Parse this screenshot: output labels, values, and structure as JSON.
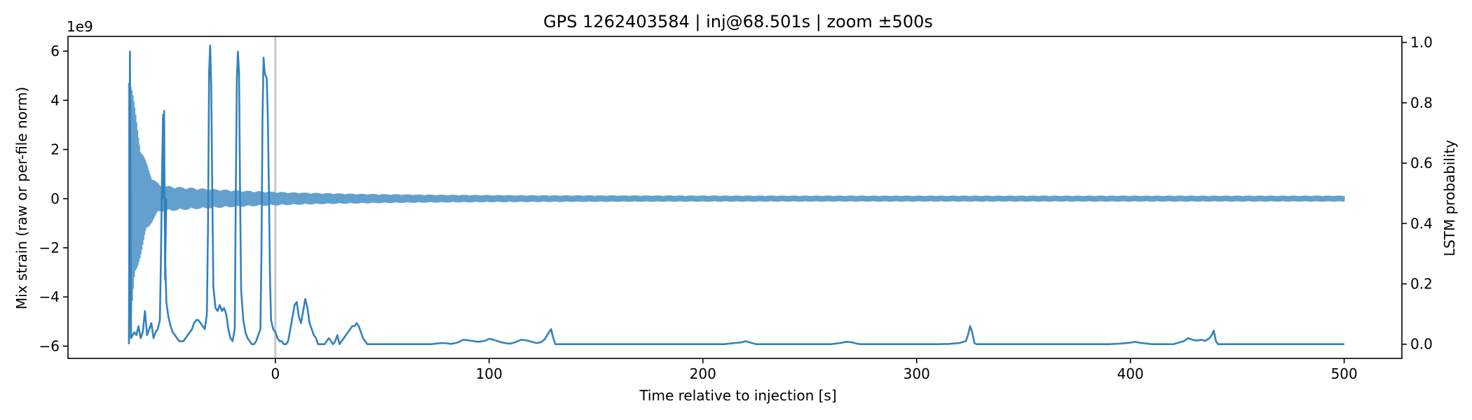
{
  "chart_data": {
    "type": "line",
    "title": "GPS 1262403584 | inj@68.501s | zoom ±500s",
    "xlabel": "Time relative to injection [s]",
    "ylabel_left": "Mix strain (raw or per-file norm)",
    "ylabel_right": "LSTM probability",
    "offset_text": "1e9",
    "xlim": [
      -97,
      527
    ],
    "ylim_left": [
      -6500000000.0,
      6600000000.0
    ],
    "ylim_right": [
      -0.047,
      1.02
    ],
    "x_ticks": [
      0,
      100,
      200,
      300,
      400,
      500
    ],
    "y_left_ticks": [
      -6,
      -4,
      -2,
      0,
      2,
      4,
      6
    ],
    "y_right_ticks": [
      0.0,
      0.2,
      0.4,
      0.6,
      0.8,
      1.0
    ],
    "injection_marker_x": 0,
    "grid": false,
    "strain_series": {
      "color": "#5b9bcb",
      "x_start": -68.5,
      "x_end": 500,
      "initial_amplitude": 5900000000.0,
      "bursts": [
        {
          "x": -52,
          "value": 3600000000.0
        },
        {
          "x": -52,
          "value": -3300000000.0
        }
      ],
      "final_amplitude": 120000000.0
    },
    "probability_series": {
      "color": "#3282bd",
      "points": [
        [
          -68.5,
          0.0
        ],
        [
          -68.0,
          0.97
        ],
        [
          -67.5,
          0.02
        ],
        [
          -66,
          0.04
        ],
        [
          -65,
          0.03
        ],
        [
          -64,
          0.06
        ],
        [
          -63,
          0.02
        ],
        [
          -62,
          0.04
        ],
        [
          -61,
          0.11
        ],
        [
          -60,
          0.03
        ],
        [
          -59,
          0.05
        ],
        [
          -58,
          0.07
        ],
        [
          -57,
          0.02
        ],
        [
          -56,
          0.04
        ],
        [
          -55,
          0.05
        ],
        [
          -54,
          0.08
        ],
        [
          -53.5,
          0.3
        ],
        [
          -53,
          0.58
        ],
        [
          -52.5,
          0.76
        ],
        [
          -52,
          0.59
        ],
        [
          -51.5,
          0.27
        ],
        [
          -51,
          0.14
        ],
        [
          -50,
          0.09
        ],
        [
          -49,
          0.06
        ],
        [
          -48,
          0.04
        ],
        [
          -47,
          0.03
        ],
        [
          -46,
          0.02
        ],
        [
          -45,
          0.01
        ],
        [
          -44,
          0.01
        ],
        [
          -43,
          0.01
        ],
        [
          -42,
          0.02
        ],
        [
          -41,
          0.03
        ],
        [
          -40,
          0.04
        ],
        [
          -39,
          0.05
        ],
        [
          -38,
          0.07
        ],
        [
          -37,
          0.08
        ],
        [
          -36,
          0.08
        ],
        [
          -35,
          0.07
        ],
        [
          -34,
          0.06
        ],
        [
          -33,
          0.05
        ],
        [
          -32,
          0.1
        ],
        [
          -31.5,
          0.4
        ],
        [
          -31,
          0.9
        ],
        [
          -30.5,
          0.99
        ],
        [
          -30,
          0.86
        ],
        [
          -29.5,
          0.5
        ],
        [
          -29,
          0.19
        ],
        [
          -28,
          0.12
        ],
        [
          -27,
          0.11
        ],
        [
          -26,
          0.13
        ],
        [
          -25,
          0.11
        ],
        [
          -24,
          0.12
        ],
        [
          -23,
          0.1
        ],
        [
          -22,
          0.05
        ],
        [
          -21,
          0.02
        ],
        [
          -20,
          0.01
        ],
        [
          -19,
          0.05
        ],
        [
          -18.5,
          0.5
        ],
        [
          -18,
          0.88
        ],
        [
          -17.5,
          0.97
        ],
        [
          -17,
          0.9
        ],
        [
          -16.5,
          0.5
        ],
        [
          -16,
          0.18
        ],
        [
          -15,
          0.08
        ],
        [
          -14,
          0.04
        ],
        [
          -13,
          0.02
        ],
        [
          -12,
          0.01
        ],
        [
          -11,
          0.0
        ],
        [
          -10,
          0.0
        ],
        [
          -9,
          0.01
        ],
        [
          -8,
          0.03
        ],
        [
          -7,
          0.05
        ],
        [
          -6.5,
          0.3
        ],
        [
          -6,
          0.75
        ],
        [
          -5.5,
          0.95
        ],
        [
          -5,
          0.9
        ],
        [
          -4.5,
          0.89
        ],
        [
          -4,
          0.88
        ],
        [
          -3.5,
          0.75
        ],
        [
          -3,
          0.5
        ],
        [
          -2.5,
          0.22
        ],
        [
          -2,
          0.08
        ],
        [
          -1,
          0.05
        ],
        [
          0,
          0.04
        ],
        [
          1,
          0.02
        ],
        [
          2,
          0.01
        ],
        [
          3,
          0.01
        ],
        [
          4,
          0.0
        ],
        [
          5,
          0.0
        ],
        [
          6,
          0.01
        ],
        [
          7,
          0.05
        ],
        [
          8,
          0.09
        ],
        [
          9,
          0.13
        ],
        [
          10,
          0.14
        ],
        [
          11,
          0.09
        ],
        [
          12,
          0.07
        ],
        [
          13,
          0.11
        ],
        [
          14,
          0.15
        ],
        [
          15,
          0.12
        ],
        [
          16,
          0.07
        ],
        [
          17,
          0.05
        ],
        [
          18,
          0.03
        ],
        [
          19,
          0.02
        ],
        [
          20,
          0.0
        ],
        [
          21,
          0.0
        ],
        [
          22,
          0.0
        ],
        [
          23,
          0.0
        ],
        [
          24,
          0.01
        ],
        [
          25,
          0.02
        ],
        [
          26,
          0.01
        ],
        [
          27,
          0.0
        ],
        [
          28,
          0.01
        ],
        [
          29,
          0.03
        ],
        [
          30,
          0.0
        ],
        [
          31,
          0.01
        ],
        [
          32,
          0.02
        ],
        [
          33,
          0.03
        ],
        [
          34,
          0.04
        ],
        [
          35,
          0.05
        ],
        [
          36,
          0.06
        ],
        [
          37,
          0.06
        ],
        [
          38,
          0.07
        ],
        [
          39,
          0.06
        ],
        [
          40,
          0.04
        ],
        [
          41,
          0.02
        ],
        [
          42,
          0.01
        ],
        [
          43,
          0.0
        ],
        [
          45,
          0.0
        ],
        [
          60,
          0.0
        ],
        [
          73,
          0.0
        ],
        [
          75,
          0.002
        ],
        [
          78,
          0.004
        ],
        [
          80,
          0.003
        ],
        [
          82,
          0.001
        ],
        [
          85,
          0.005
        ],
        [
          88,
          0.015
        ],
        [
          90,
          0.013
        ],
        [
          92,
          0.011
        ],
        [
          95,
          0.008
        ],
        [
          98,
          0.011
        ],
        [
          100,
          0.018
        ],
        [
          102,
          0.015
        ],
        [
          104,
          0.01
        ],
        [
          106,
          0.006
        ],
        [
          108,
          0.003
        ],
        [
          110,
          0.002
        ],
        [
          112,
          0.006
        ],
        [
          115,
          0.015
        ],
        [
          118,
          0.012
        ],
        [
          120,
          0.008
        ],
        [
          122,
          0.004
        ],
        [
          124,
          0.006
        ],
        [
          126,
          0.016
        ],
        [
          128,
          0.04
        ],
        [
          129,
          0.05
        ],
        [
          130,
          0.02
        ],
        [
          131,
          0.0
        ],
        [
          135,
          0.0
        ],
        [
          150,
          0.0
        ],
        [
          170,
          0.0
        ],
        [
          190,
          0.0
        ],
        [
          210,
          0.0
        ],
        [
          212,
          0.002
        ],
        [
          215,
          0.004
        ],
        [
          218,
          0.006
        ],
        [
          220,
          0.01
        ],
        [
          222,
          0.006
        ],
        [
          224,
          0.002
        ],
        [
          225,
          0.0
        ],
        [
          245,
          0.0
        ],
        [
          260,
          0.0
        ],
        [
          262,
          0.002
        ],
        [
          265,
          0.005
        ],
        [
          267,
          0.008
        ],
        [
          270,
          0.006
        ],
        [
          272,
          0.002
        ],
        [
          274,
          0.0
        ],
        [
          290,
          0.0
        ],
        [
          310,
          0.0
        ],
        [
          315,
          0.001
        ],
        [
          320,
          0.004
        ],
        [
          323,
          0.01
        ],
        [
          324,
          0.03
        ],
        [
          325,
          0.06
        ],
        [
          326,
          0.04
        ],
        [
          327,
          0.004
        ],
        [
          328,
          0.0
        ],
        [
          350,
          0.0
        ],
        [
          370,
          0.0
        ],
        [
          390,
          0.0
        ],
        [
          395,
          0.002
        ],
        [
          400,
          0.005
        ],
        [
          402,
          0.008
        ],
        [
          405,
          0.004
        ],
        [
          408,
          0.002
        ],
        [
          410,
          0.0
        ],
        [
          420,
          0.0
        ],
        [
          425,
          0.01
        ],
        [
          427,
          0.02
        ],
        [
          429,
          0.015
        ],
        [
          431,
          0.012
        ],
        [
          433,
          0.015
        ],
        [
          435,
          0.011
        ],
        [
          437,
          0.02
        ],
        [
          438,
          0.03
        ],
        [
          439,
          0.045
        ],
        [
          440,
          0.01
        ],
        [
          441,
          0.0
        ],
        [
          460,
          0.0
        ],
        [
          480,
          0.0
        ],
        [
          500,
          0.0
        ]
      ]
    }
  }
}
